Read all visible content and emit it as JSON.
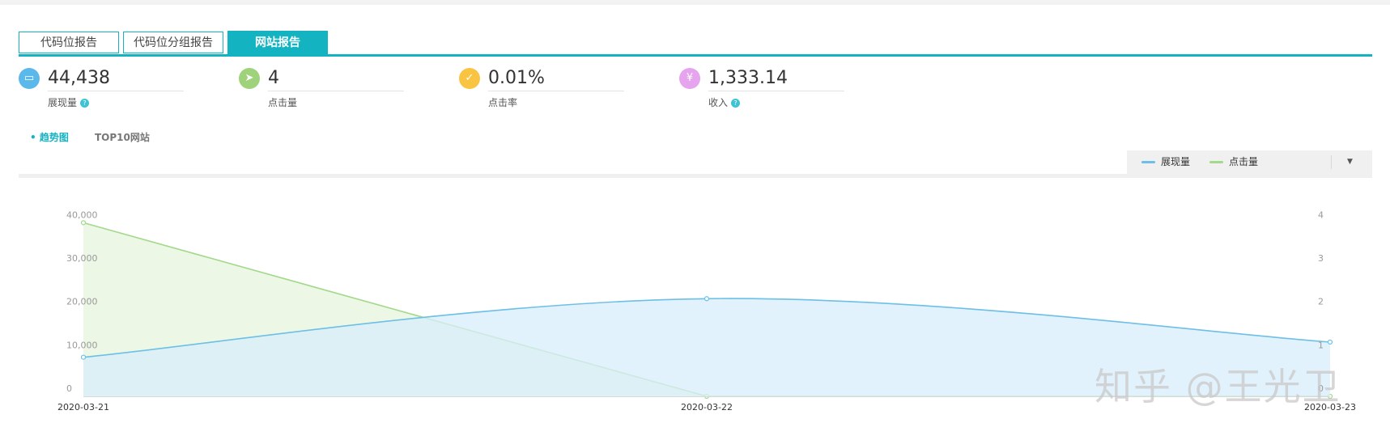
{
  "tabs": [
    {
      "label": "代码位报告",
      "active": false
    },
    {
      "label": "代码位分组报告",
      "active": false
    },
    {
      "label": "网站报告",
      "active": true
    }
  ],
  "metrics": [
    {
      "value": "44,438",
      "label": "展现量",
      "icon": "window-icon",
      "color": "#5bb8ea",
      "glyph": "▭",
      "help": true
    },
    {
      "value": "4",
      "label": "点击量",
      "icon": "cursor-icon",
      "color": "#9ed37c",
      "glyph": "➤",
      "help": false
    },
    {
      "value": "0.01%",
      "label": "点击率",
      "icon": "check-icon",
      "color": "#f9c441",
      "glyph": "✓",
      "help": false
    },
    {
      "value": "1,333.14",
      "label": "收入",
      "icon": "yen-icon",
      "color": "#e6a3ee",
      "glyph": "¥",
      "help": true
    }
  ],
  "help_glyph": "?",
  "subtabs": [
    {
      "label": "• 趋势图",
      "active": true
    },
    {
      "label": "TOP10网站",
      "active": false
    }
  ],
  "legend": {
    "items": [
      {
        "name": "展现量",
        "color": "#6cbfe6"
      },
      {
        "name": "点击量",
        "color": "#a2d98b"
      }
    ],
    "dropdown_glyph": "▼"
  },
  "chart_data": {
    "type": "area",
    "categories": [
      "2020-03-21",
      "2020-03-22",
      "2020-03-23"
    ],
    "series": [
      {
        "name": "展现量",
        "axis": "left",
        "color": "#6cbfe6",
        "fill": "#d8eefb",
        "values": [
          9000,
          22500,
          12500
        ]
      },
      {
        "name": "点击量",
        "axis": "right",
        "color": "#a2d98b",
        "fill": "#e6f4dd",
        "values": [
          4,
          0,
          0
        ]
      }
    ],
    "y_left": {
      "ticks": [
        0,
        10000,
        20000,
        30000,
        40000
      ],
      "tick_labels": [
        "0",
        "10,000",
        "20,000",
        "30,000",
        "40,000"
      ],
      "range": [
        0,
        41000
      ]
    },
    "y_right": {
      "ticks": [
        0,
        1,
        2,
        3,
        4
      ],
      "tick_labels": [
        "0",
        "1",
        "2",
        "3",
        "4"
      ],
      "range": [
        0,
        4.1
      ]
    },
    "grid": false,
    "legend_position": "top-right",
    "title": "",
    "xlabel": "",
    "ylabel": ""
  },
  "watermark": "知乎 @王光卫"
}
